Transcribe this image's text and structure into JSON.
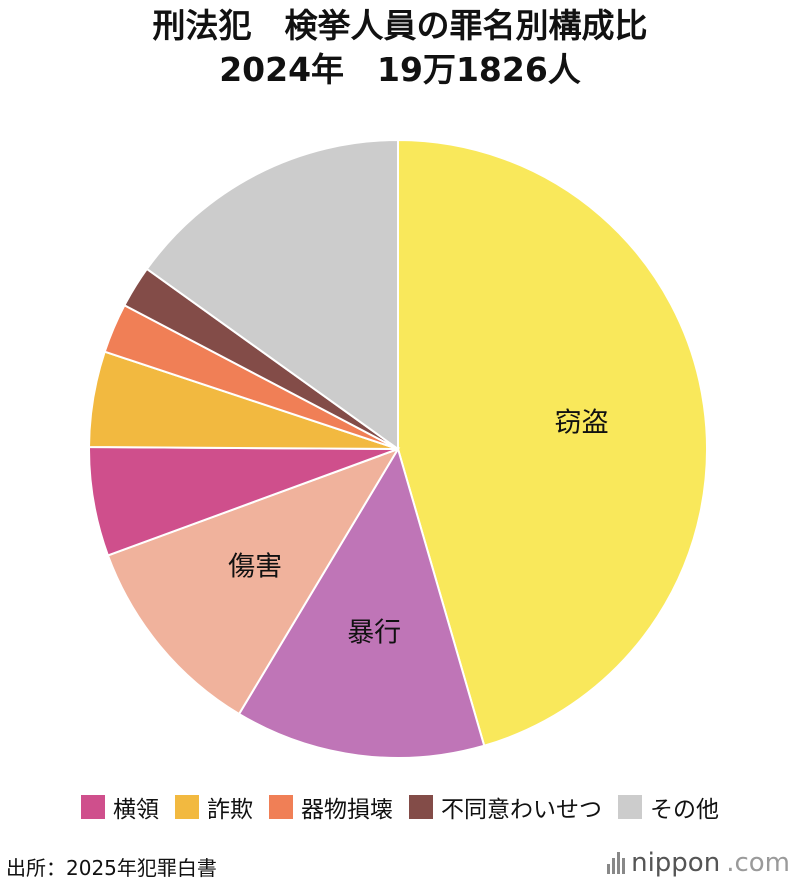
{
  "header": {
    "title_line1": "刑法犯　検挙人員の罪名別構成比",
    "title_line2": "2024年　19万1826人"
  },
  "chart_data": {
    "type": "pie",
    "title": "刑法犯　検挙人員の罪名別構成比",
    "subtitle": "2024年　19万1826人",
    "start_angle_deg": 0,
    "direction": "clockwise",
    "slices": [
      {
        "label": "窃盗",
        "value": 45.5,
        "color": "#F9E85B",
        "show_label": true
      },
      {
        "label": "暴行",
        "value": 13.1,
        "color": "#BF75B7",
        "show_label": true
      },
      {
        "label": "傷害",
        "value": 10.8,
        "color": "#F0B29C",
        "show_label": true
      },
      {
        "label": "横領",
        "value": 5.7,
        "color": "#CF4F8C",
        "show_label": false
      },
      {
        "label": "詐欺",
        "value": 5.0,
        "color": "#F2B940",
        "show_label": false
      },
      {
        "label": "器物損壊",
        "value": 2.6,
        "color": "#F07F56",
        "show_label": false
      },
      {
        "label": "不同意わいせつ",
        "value": 2.2,
        "color": "#834C48",
        "show_label": false
      },
      {
        "label": "その他",
        "value": 15.1,
        "color": "#CCCCCC",
        "show_label": false
      }
    ],
    "legend_position": "bottom"
  },
  "legend": {
    "items": [
      {
        "label": "横領",
        "color": "#CF4F8C"
      },
      {
        "label": "詐欺",
        "color": "#F2B940"
      },
      {
        "label": "器物損壊",
        "color": "#F07F56"
      },
      {
        "label": "不同意わいせつ",
        "color": "#834C48"
      },
      {
        "label": "その他",
        "color": "#CCCCCC"
      }
    ]
  },
  "footer": {
    "source": "出所：2025年犯罪白書",
    "brand_main": "nippon",
    "brand_suffix": ".com"
  }
}
